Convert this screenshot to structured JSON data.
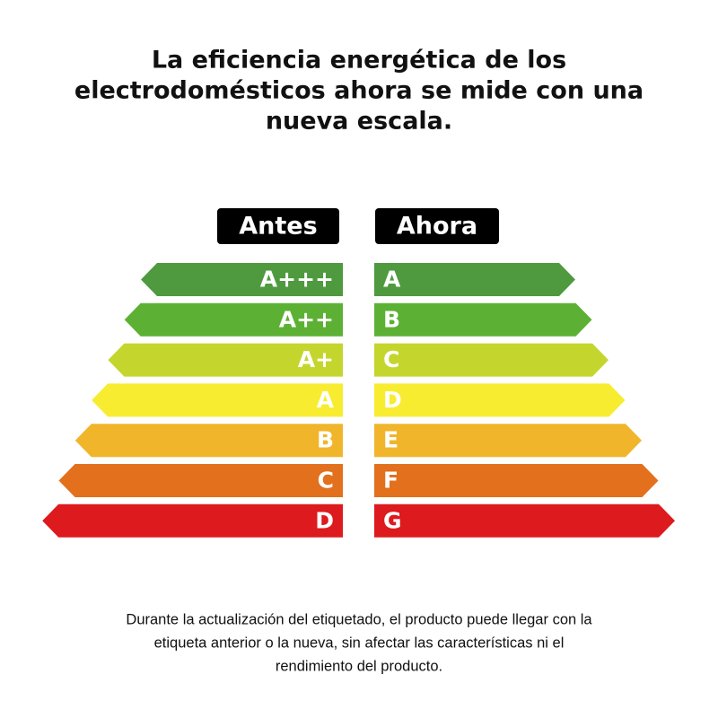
{
  "title": {
    "lines": [
      "La eficiencia energética de los",
      "electrodomésticos ahora se mide con una",
      "nueva escala."
    ]
  },
  "colors": [
    "#4f9a3f",
    "#5cb134",
    "#c4d62d",
    "#f8ec30",
    "#f0b52b",
    "#e2701d",
    "#dd1a1e"
  ],
  "scales": [
    {
      "header": "Antes",
      "levels": [
        "A+++",
        "A++",
        "A+",
        "A",
        "B",
        "C",
        "D"
      ]
    },
    {
      "header": "Ahora",
      "levels": [
        "A",
        "B",
        "C",
        "D",
        "E",
        "F",
        "G"
      ]
    }
  ],
  "footer": {
    "lines": [
      "Durante la actualización del etiquetado, el producto puede llegar con la",
      "etiqueta anterior o la nueva, sin afectar las características ni el",
      "rendimiento del producto."
    ]
  }
}
